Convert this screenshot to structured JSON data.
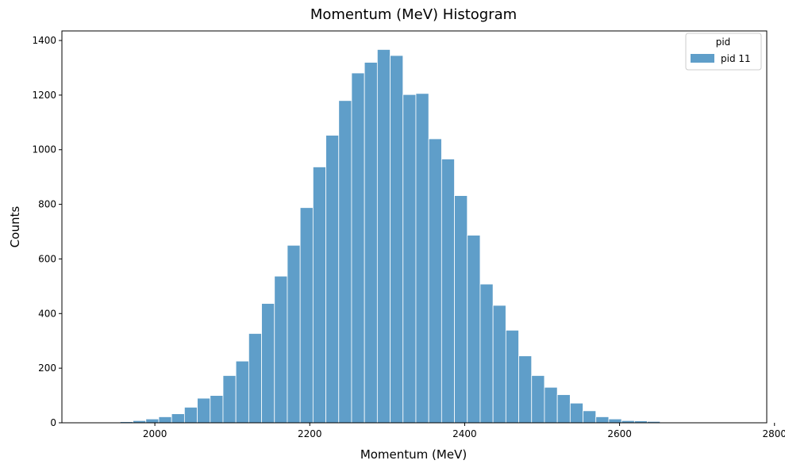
{
  "chart_data": {
    "type": "bar",
    "title": "Momentum (MeV) Histogram",
    "xlabel": "Momentum (MeV)",
    "ylabel": "Counts",
    "xlim": [
      1880,
      2790
    ],
    "ylim": [
      0,
      1435
    ],
    "xticks": [
      2000,
      2200,
      2400,
      2600,
      2800
    ],
    "yticks": [
      0,
      200,
      400,
      600,
      800,
      1000,
      1200,
      1400
    ],
    "grid": false,
    "legend": {
      "title": "pid",
      "placement": "top-right"
    },
    "bar_color": "#5f9ec9",
    "bin_width": 16.6,
    "series": [
      {
        "name": "pid 11",
        "bins_left": [
          1922,
          1938.6,
          1955.2,
          1971.8,
          1988.4,
          2005,
          2021.6,
          2038.2,
          2054.8,
          2071.4,
          2088,
          2104.6,
          2121.2,
          2137.8,
          2154.4,
          2171,
          2187.6,
          2204.2,
          2220.8,
          2237.4,
          2254,
          2270.6,
          2287.2,
          2303.8,
          2320.4,
          2337,
          2353.6,
          2370.2,
          2386.8,
          2403.4,
          2420,
          2436.6,
          2453.2,
          2469.8,
          2486.4,
          2503,
          2519.6,
          2536.2,
          2552.8,
          2569.4,
          2586,
          2602.6,
          2619.2,
          2635.8,
          2652.4,
          2669,
          2685.6,
          2702.2,
          2718.8,
          2735.4
        ],
        "values": [
          1,
          2,
          4,
          8,
          14,
          22,
          33,
          57,
          90,
          100,
          173,
          226,
          327,
          437,
          537,
          650,
          788,
          937,
          1053,
          1180,
          1281,
          1320,
          1367,
          1345,
          1202,
          1206,
          1040,
          966,
          832,
          687,
          508,
          430,
          339,
          245,
          173,
          130,
          103,
          72,
          44,
          22,
          14,
          8,
          7,
          5,
          2,
          1,
          1,
          1,
          1,
          1
        ]
      }
    ]
  }
}
